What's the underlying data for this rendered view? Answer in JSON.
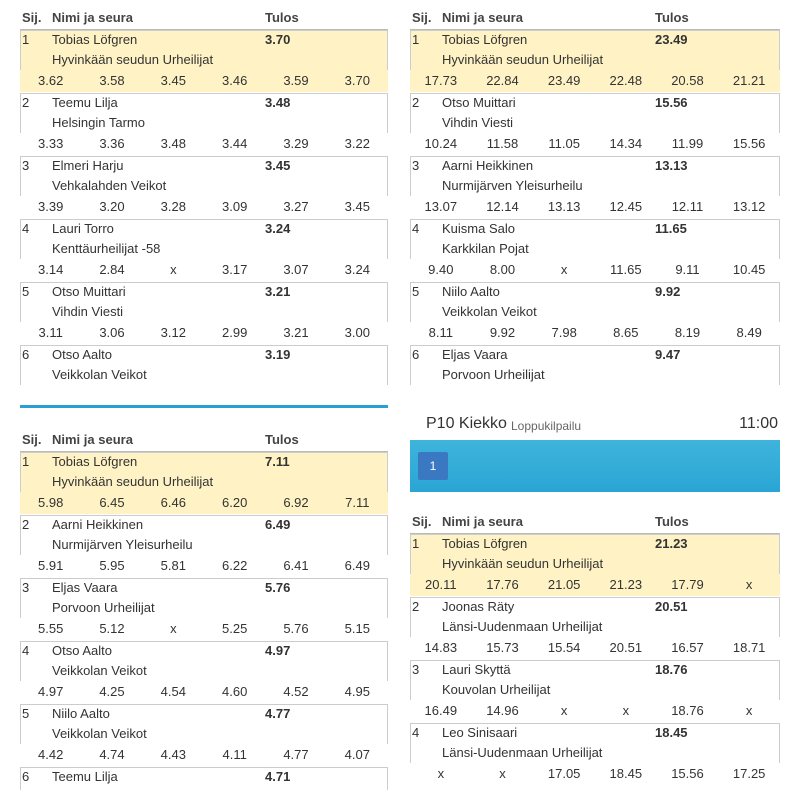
{
  "panels": [
    {
      "header": {
        "rank": "Sij.",
        "name": "Nimi ja seura",
        "result": "Tulos"
      },
      "rows": [
        {
          "rank": "1",
          "name": "Tobias Löfgren",
          "club": "Hyvinkään seudun Urheilijat",
          "result": "3.70",
          "attempts": [
            "3.62",
            "3.58",
            "3.45",
            "3.46",
            "3.59",
            "3.70"
          ]
        },
        {
          "rank": "2",
          "name": "Teemu Lilja",
          "club": "Helsingin Tarmo",
          "result": "3.48",
          "attempts": [
            "3.33",
            "3.36",
            "3.48",
            "3.44",
            "3.29",
            "3.22"
          ]
        },
        {
          "rank": "3",
          "name": "Elmeri Harju",
          "club": "Vehkalahden Veikot",
          "result": "3.45",
          "attempts": [
            "3.39",
            "3.20",
            "3.28",
            "3.09",
            "3.27",
            "3.45"
          ]
        },
        {
          "rank": "4",
          "name": "Lauri Torro",
          "club": "Kenttäurheilijat -58",
          "result": "3.24",
          "attempts": [
            "3.14",
            "2.84",
            "x",
            "3.17",
            "3.07",
            "3.24"
          ]
        },
        {
          "rank": "5",
          "name": "Otso Muittari",
          "club": "Vihdin Viesti",
          "result": "3.21",
          "attempts": [
            "3.11",
            "3.06",
            "3.12",
            "2.99",
            "3.21",
            "3.00"
          ]
        },
        {
          "rank": "6",
          "name": "Otso Aalto",
          "club": "Veikkolan Veikot",
          "result": "3.19"
        }
      ]
    },
    {
      "header": {
        "rank": "Sij.",
        "name": "Nimi ja seura",
        "result": "Tulos"
      },
      "rows": [
        {
          "rank": "1",
          "name": "Tobias Löfgren",
          "club": "Hyvinkään seudun Urheilijat",
          "result": "23.49",
          "attempts": [
            "17.73",
            "22.84",
            "23.49",
            "22.48",
            "20.58",
            "21.21"
          ]
        },
        {
          "rank": "2",
          "name": "Otso Muittari",
          "club": "Vihdin Viesti",
          "result": "15.56",
          "attempts": [
            "10.24",
            "11.58",
            "11.05",
            "14.34",
            "11.99",
            "15.56"
          ]
        },
        {
          "rank": "3",
          "name": "Aarni Heikkinen",
          "club": "Nurmijärven Yleisurheilu",
          "result": "13.13",
          "attempts": [
            "13.07",
            "12.14",
            "13.13",
            "12.45",
            "12.11",
            "13.12"
          ]
        },
        {
          "rank": "4",
          "name": "Kuisma Salo",
          "club": "Karkkilan Pojat",
          "result": "11.65",
          "attempts": [
            "9.40",
            "8.00",
            "x",
            "11.65",
            "9.11",
            "10.45"
          ]
        },
        {
          "rank": "5",
          "name": "Niilo Aalto",
          "club": "Veikkolan Veikot",
          "result": "9.92",
          "attempts": [
            "8.11",
            "9.92",
            "7.98",
            "8.65",
            "8.19",
            "8.49"
          ]
        },
        {
          "rank": "6",
          "name": "Eljas Vaara",
          "club": "Porvoon Urheilijat",
          "result": "9.47"
        }
      ]
    },
    {
      "header": {
        "rank": "Sij.",
        "name": "Nimi ja seura",
        "result": "Tulos"
      },
      "rows": [
        {
          "rank": "1",
          "name": "Tobias Löfgren",
          "club": "Hyvinkään seudun Urheilijat",
          "result": "7.11",
          "attempts": [
            "5.98",
            "6.45",
            "6.46",
            "6.20",
            "6.92",
            "7.11"
          ]
        },
        {
          "rank": "2",
          "name": "Aarni Heikkinen",
          "club": "Nurmijärven Yleisurheilu",
          "result": "6.49",
          "attempts": [
            "5.91",
            "5.95",
            "5.81",
            "6.22",
            "6.41",
            "6.49"
          ]
        },
        {
          "rank": "3",
          "name": "Eljas Vaara",
          "club": "Porvoon Urheilijat",
          "result": "5.76",
          "attempts": [
            "5.55",
            "5.12",
            "x",
            "5.25",
            "5.76",
            "5.15"
          ]
        },
        {
          "rank": "4",
          "name": "Otso Aalto",
          "club": "Veikkolan Veikot",
          "result": "4.97",
          "attempts": [
            "4.97",
            "4.25",
            "4.54",
            "4.60",
            "4.52",
            "4.95"
          ]
        },
        {
          "rank": "5",
          "name": "Niilo Aalto",
          "club": "Veikkolan Veikot",
          "result": "4.77",
          "attempts": [
            "4.42",
            "4.74",
            "4.43",
            "4.11",
            "4.77",
            "4.07"
          ]
        },
        {
          "rank": "6",
          "name": "Teemu Lilja",
          "result": "4.71"
        }
      ]
    },
    {
      "event": {
        "title": "P10 Kiekko",
        "subtitle": "Loppukilpailu",
        "time": "11:00",
        "button": "1"
      },
      "header": {
        "rank": "Sij.",
        "name": "Nimi ja seura",
        "result": "Tulos"
      },
      "rows": [
        {
          "rank": "1",
          "name": "Tobias Löfgren",
          "club": "Hyvinkään seudun Urheilijat",
          "result": "21.23",
          "attempts": [
            "20.11",
            "17.76",
            "21.05",
            "21.23",
            "17.79",
            "x"
          ]
        },
        {
          "rank": "2",
          "name": "Joonas Räty",
          "club": "Länsi-Uudenmaan Urheilijat",
          "result": "20.51",
          "attempts": [
            "14.83",
            "15.73",
            "15.54",
            "20.51",
            "16.57",
            "18.71"
          ]
        },
        {
          "rank": "3",
          "name": "Lauri Skyttä",
          "club": "Kouvolan Urheilijat",
          "result": "18.76",
          "attempts": [
            "16.49",
            "14.96",
            "x",
            "x",
            "18.76",
            "x"
          ]
        },
        {
          "rank": "4",
          "name": "Leo Sinisaari",
          "club": "Länsi-Uudenmaan Urheilijat",
          "result": "18.45",
          "attempts": [
            "x",
            "x",
            "17.05",
            "18.45",
            "15.56",
            "17.25"
          ]
        }
      ]
    }
  ]
}
